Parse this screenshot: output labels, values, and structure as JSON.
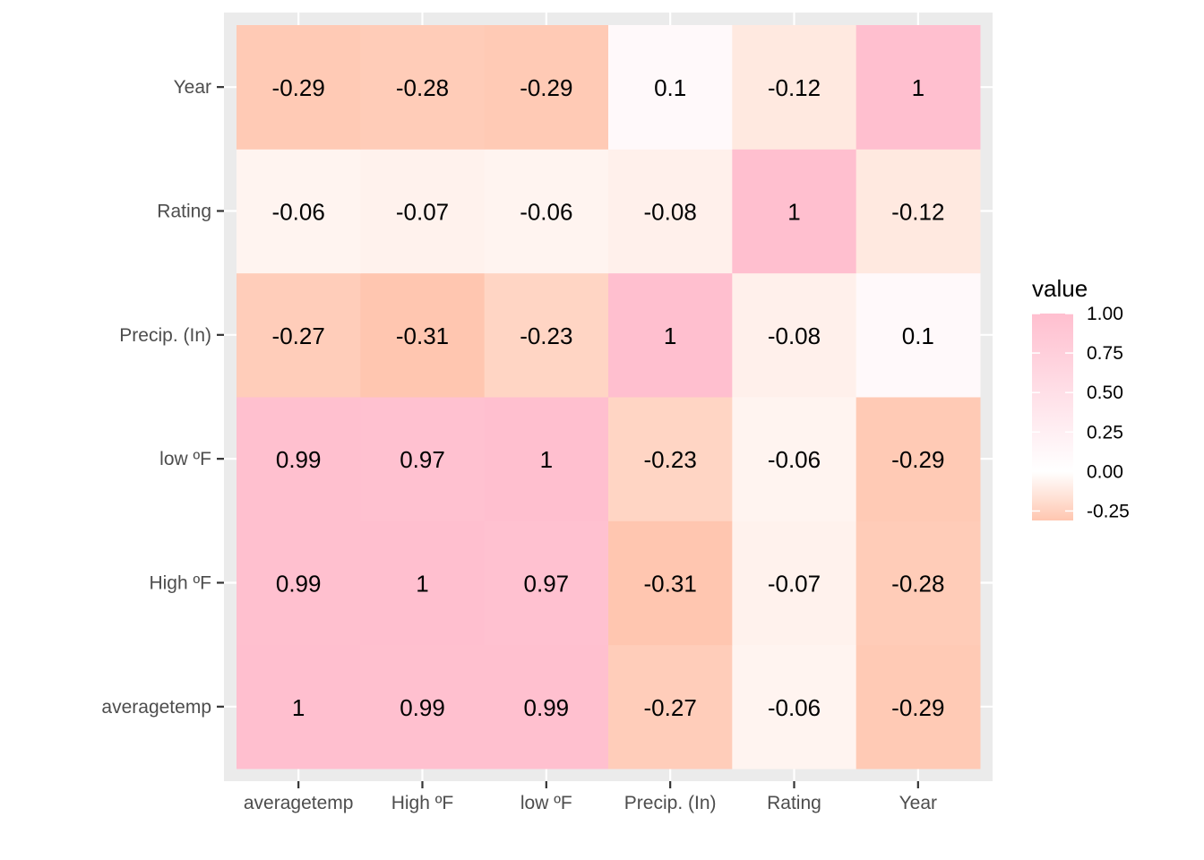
{
  "chart_data": {
    "type": "heatmap",
    "x_categories": [
      "averagetemp",
      "High ºF",
      "low ºF",
      "Precip. (In)",
      "Rating",
      "Year"
    ],
    "y_categories": [
      "averagetemp",
      "High ºF",
      "low ºF",
      "Precip. (In)",
      "Rating",
      "Year"
    ],
    "values": [
      [
        1,
        0.99,
        0.99,
        -0.27,
        -0.06,
        -0.29
      ],
      [
        0.99,
        1,
        0.97,
        -0.31,
        -0.07,
        -0.28
      ],
      [
        0.99,
        0.97,
        1,
        -0.23,
        -0.06,
        -0.29
      ],
      [
        -0.27,
        -0.31,
        -0.23,
        1,
        -0.08,
        0.1
      ],
      [
        -0.06,
        -0.07,
        -0.06,
        -0.08,
        1,
        -0.12
      ],
      [
        -0.29,
        -0.28,
        -0.29,
        0.1,
        -0.12,
        1
      ]
    ],
    "labels": [
      [
        "1",
        "0.99",
        "0.99",
        "-0.27",
        "-0.06",
        "-0.29"
      ],
      [
        "0.99",
        "1",
        "0.97",
        "-0.31",
        "-0.07",
        "-0.28"
      ],
      [
        "0.99",
        "0.97",
        "1",
        "-0.23",
        "-0.06",
        "-0.29"
      ],
      [
        "-0.27",
        "-0.31",
        "-0.23",
        "1",
        "-0.08",
        "0.1"
      ],
      [
        "-0.06",
        "-0.07",
        "-0.06",
        "-0.08",
        "1",
        "-0.12"
      ],
      [
        "-0.29",
        "-0.28",
        "-0.29",
        "0.1",
        "-0.12",
        "1"
      ]
    ],
    "legend": {
      "title": "value",
      "ticks": [
        1.0,
        0.75,
        0.5,
        0.25,
        0.0,
        -0.25
      ],
      "tick_labels": [
        "1.00",
        "0.75",
        "0.50",
        "0.25",
        "0.00",
        "-0.25"
      ],
      "range": [
        -0.31,
        1.0
      ],
      "placement": "right"
    },
    "color_scale": {
      "low": "#FFC6B0",
      "mid": "#FFFFFF",
      "high": "#FFBFCF",
      "midpoint": 0
    },
    "panel_background": "#EBEBEB",
    "gridline_color": "#FFFFFF",
    "grid": true
  }
}
